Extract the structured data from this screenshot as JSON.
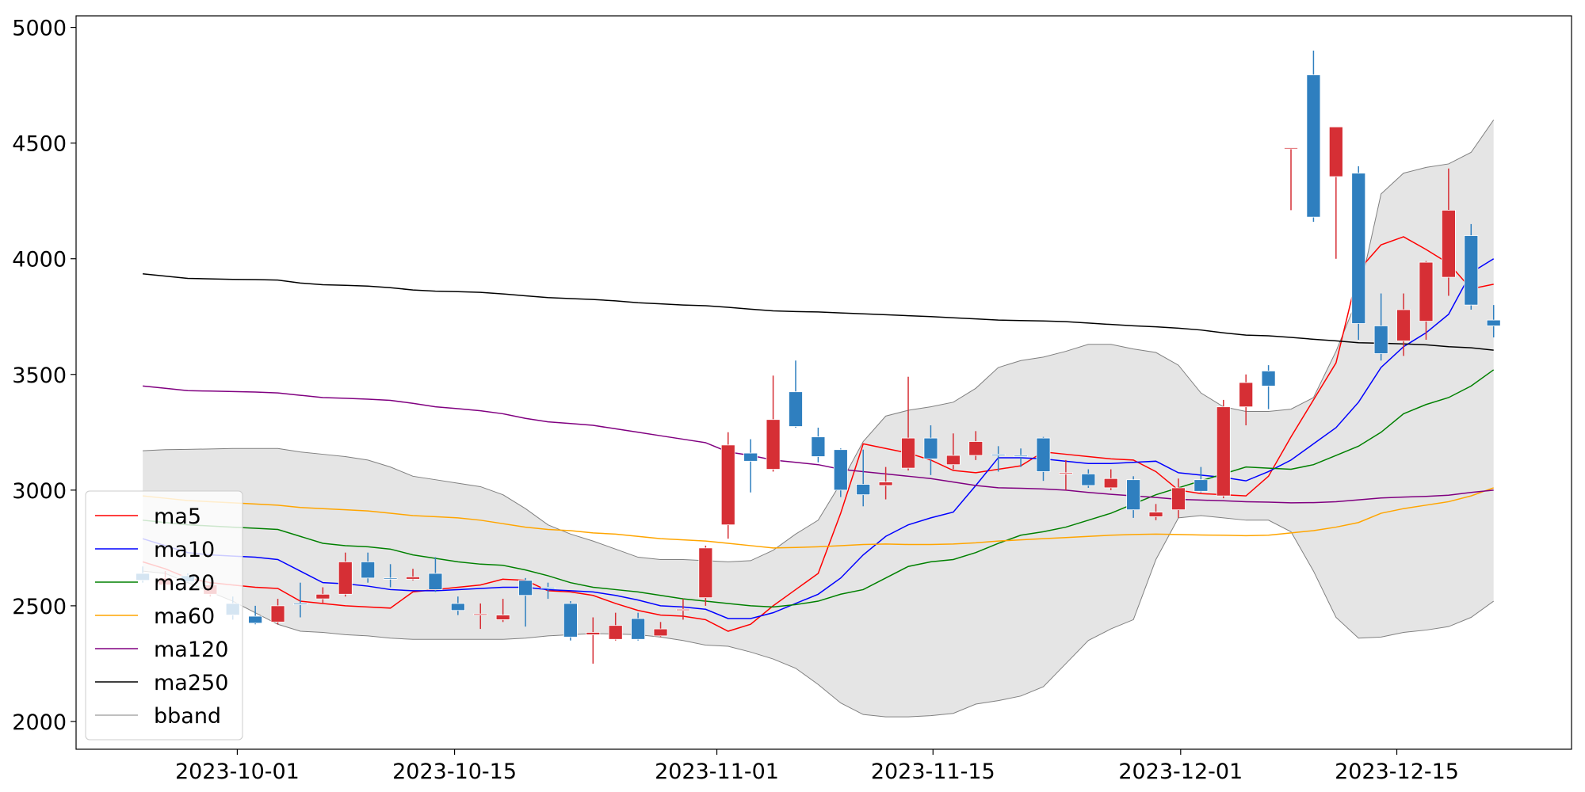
{
  "chart_data": {
    "type": "candlestick",
    "xlim": [
      -2.96,
      63.46
    ],
    "xticks": [
      {
        "value": 4.2,
        "label": "2023-10-01"
      },
      {
        "value": 13.85,
        "label": "2023-10-15"
      },
      {
        "value": 25.5,
        "label": "2023-11-01"
      },
      {
        "value": 35.1,
        "label": "2023-11-15"
      },
      {
        "value": 46.1,
        "label": "2023-12-01"
      },
      {
        "value": 55.7,
        "label": "2023-12-15"
      }
    ],
    "ylim": [
      1880,
      5050
    ],
    "yticks": [
      2000,
      2500,
      3000,
      3500,
      4000,
      4500,
      5000
    ],
    "up_color": "#d62f35",
    "down_color": "#2f7fbf",
    "legend": "lower left",
    "open": [
      2640,
      2590,
      2630,
      2550,
      2510,
      2455,
      2430,
      2510,
      2530,
      2550,
      2690,
      2620,
      2615,
      2640,
      2510,
      2460,
      2440,
      2610,
      2580,
      2510,
      2375,
      2355,
      2445,
      2370,
      2480,
      2535,
      2850,
      3160,
      3090,
      3425,
      3230,
      3175,
      3025,
      3020,
      3095,
      3225,
      3110,
      3150,
      3155,
      3150,
      3225,
      3075,
      3070,
      3010,
      3045,
      2885,
      2915,
      3045,
      2975,
      3360,
      3515,
      4475,
      4795,
      4355,
      4370,
      3710,
      3645,
      3730,
      3920,
      4100,
      3735
    ],
    "high": [
      2670,
      2650,
      2640,
      2600,
      2540,
      2500,
      2530,
      2600,
      2580,
      2730,
      2730,
      2680,
      2660,
      2710,
      2540,
      2510,
      2530,
      2620,
      2600,
      2520,
      2450,
      2470,
      2470,
      2430,
      2530,
      2760,
      3250,
      3220,
      3495,
      3560,
      3270,
      3180,
      3175,
      3100,
      3490,
      3280,
      3245,
      3255,
      3190,
      3180,
      3230,
      3130,
      3090,
      3090,
      3060,
      2940,
      3050,
      3100,
      3390,
      3500,
      3540,
      4480,
      4900,
      4570,
      4400,
      3850,
      3850,
      3990,
      4390,
      4150,
      3800
    ],
    "low": [
      2600,
      2570,
      2600,
      2540,
      2440,
      2420,
      2420,
      2450,
      2510,
      2540,
      2600,
      2580,
      2610,
      2560,
      2460,
      2400,
      2430,
      2410,
      2530,
      2350,
      2250,
      2350,
      2350,
      2365,
      2440,
      2500,
      2790,
      2990,
      3080,
      3270,
      3120,
      2970,
      2930,
      2960,
      3085,
      3065,
      3090,
      3130,
      3080,
      3100,
      3040,
      3000,
      3010,
      3000,
      2880,
      2870,
      2880,
      2990,
      2965,
      3280,
      3350,
      4210,
      4160,
      4000,
      3650,
      3560,
      3580,
      3650,
      3840,
      3780,
      3660
    ],
    "close": [
      2610,
      2620,
      2605,
      2590,
      2460,
      2425,
      2500,
      2505,
      2550,
      2690,
      2620,
      2615,
      2625,
      2570,
      2480,
      2465,
      2460,
      2545,
      2575,
      2365,
      2385,
      2415,
      2355,
      2400,
      2485,
      2750,
      3195,
      3125,
      3305,
      3275,
      3145,
      3000,
      2980,
      3035,
      3225,
      3135,
      3150,
      3210,
      3150,
      3145,
      3080,
      3075,
      3020,
      3050,
      2915,
      2905,
      3010,
      2995,
      3360,
      3465,
      3450,
      4480,
      4180,
      4570,
      3720,
      3590,
      3780,
      3985,
      4210,
      3800,
      3710
    ],
    "lines": [
      {
        "name": "ma5",
        "color": "#ff0000",
        "values": [
          2690,
          2660,
          2620,
          2600,
          2590,
          2580,
          2575,
          2520,
          2510,
          2500,
          2495,
          2490,
          2560,
          2570,
          2580,
          2590,
          2615,
          2610,
          2565,
          2560,
          2545,
          2510,
          2480,
          2460,
          2455,
          2440,
          2390,
          2420,
          2500,
          2570,
          2640,
          2900,
          3200,
          3180,
          3160,
          3130,
          3085,
          3075,
          3090,
          3105,
          3165,
          3155,
          3145,
          3135,
          3130,
          3080,
          3000,
          2985,
          2980,
          2975,
          3060,
          3230,
          3390,
          3550,
          3950,
          4060,
          4095,
          4040,
          3980,
          3870,
          3890
        ]
      },
      {
        "name": "ma10",
        "color": "#0000ff",
        "values": [
          2790,
          2760,
          2730,
          2720,
          2715,
          2710,
          2700,
          2650,
          2600,
          2595,
          2585,
          2570,
          2565,
          2565,
          2570,
          2575,
          2580,
          2580,
          2570,
          2565,
          2560,
          2545,
          2525,
          2500,
          2495,
          2485,
          2445,
          2445,
          2470,
          2510,
          2550,
          2620,
          2720,
          2800,
          2850,
          2880,
          2905,
          3020,
          3140,
          3140,
          3135,
          3125,
          3115,
          3115,
          3120,
          3125,
          3075,
          3065,
          3055,
          3040,
          3080,
          3130,
          3200,
          3270,
          3380,
          3530,
          3620,
          3680,
          3760,
          3940,
          4000
        ]
      },
      {
        "name": "ma20",
        "color": "#008000",
        "values": [
          2870,
          2860,
          2850,
          2845,
          2840,
          2835,
          2830,
          2800,
          2770,
          2760,
          2755,
          2745,
          2720,
          2705,
          2690,
          2680,
          2675,
          2655,
          2630,
          2600,
          2580,
          2570,
          2560,
          2545,
          2530,
          2520,
          2510,
          2500,
          2495,
          2505,
          2520,
          2550,
          2570,
          2620,
          2670,
          2690,
          2700,
          2730,
          2770,
          2805,
          2820,
          2840,
          2870,
          2900,
          2940,
          2980,
          3010,
          3040,
          3070,
          3100,
          3095,
          3090,
          3110,
          3150,
          3190,
          3250,
          3330,
          3370,
          3400,
          3450,
          3520
        ]
      },
      {
        "name": "ma60",
        "color": "#ffa500",
        "values": [
          2975,
          2965,
          2955,
          2950,
          2945,
          2940,
          2935,
          2925,
          2920,
          2915,
          2910,
          2900,
          2890,
          2885,
          2880,
          2870,
          2855,
          2840,
          2830,
          2825,
          2815,
          2810,
          2800,
          2790,
          2785,
          2780,
          2770,
          2760,
          2750,
          2752,
          2755,
          2760,
          2765,
          2767,
          2765,
          2765,
          2767,
          2772,
          2780,
          2785,
          2790,
          2795,
          2800,
          2805,
          2808,
          2810,
          2808,
          2806,
          2805,
          2803,
          2805,
          2815,
          2825,
          2840,
          2860,
          2900,
          2920,
          2935,
          2950,
          2975,
          3010
        ]
      },
      {
        "name": "ma120",
        "color": "#800080",
        "values": [
          3450,
          3440,
          3430,
          3428,
          3426,
          3424,
          3420,
          3410,
          3400,
          3397,
          3393,
          3388,
          3375,
          3360,
          3352,
          3343,
          3330,
          3310,
          3295,
          3288,
          3280,
          3265,
          3250,
          3235,
          3220,
          3205,
          3165,
          3150,
          3130,
          3120,
          3110,
          3090,
          3080,
          3070,
          3060,
          3050,
          3035,
          3020,
          3010,
          3008,
          3005,
          3000,
          2990,
          2982,
          2975,
          2968,
          2960,
          2957,
          2954,
          2950,
          2948,
          2945,
          2946,
          2950,
          2958,
          2966,
          2970,
          2973,
          2978,
          2990,
          3000
        ]
      },
      {
        "name": "ma250",
        "color": "#000000",
        "values": [
          3935,
          3925,
          3915,
          3913,
          3911,
          3910,
          3908,
          3895,
          3888,
          3885,
          3882,
          3875,
          3865,
          3860,
          3858,
          3855,
          3848,
          3840,
          3832,
          3828,
          3824,
          3818,
          3810,
          3805,
          3800,
          3797,
          3790,
          3782,
          3775,
          3772,
          3770,
          3766,
          3762,
          3758,
          3754,
          3750,
          3745,
          3740,
          3735,
          3733,
          3731,
          3728,
          3722,
          3716,
          3710,
          3706,
          3700,
          3692,
          3680,
          3670,
          3667,
          3660,
          3652,
          3645,
          3637,
          3635,
          3632,
          3628,
          3620,
          3615,
          3605
        ]
      }
    ],
    "bband": {
      "name": "bband",
      "color": "#808080",
      "fill": "#e5e5e5",
      "upper": [
        3170,
        3175,
        3176,
        3178,
        3180,
        3180,
        3180,
        3165,
        3155,
        3145,
        3130,
        3100,
        3060,
        3045,
        3030,
        3015,
        2980,
        2920,
        2850,
        2810,
        2780,
        2745,
        2710,
        2700,
        2700,
        2695,
        2690,
        2695,
        2740,
        2810,
        2870,
        3030,
        3210,
        3320,
        3345,
        3360,
        3380,
        3440,
        3530,
        3560,
        3575,
        3600,
        3630,
        3630,
        3610,
        3595,
        3540,
        3420,
        3360,
        3340,
        3340,
        3350,
        3400,
        3600,
        3840,
        4280,
        4370,
        4395,
        4410,
        4460,
        4600
      ],
      "lower": [
        2650,
        2640,
        2600,
        2560,
        2520,
        2470,
        2420,
        2390,
        2385,
        2375,
        2370,
        2360,
        2355,
        2355,
        2355,
        2355,
        2355,
        2360,
        2370,
        2375,
        2380,
        2378,
        2375,
        2365,
        2350,
        2330,
        2325,
        2300,
        2270,
        2230,
        2160,
        2080,
        2030,
        2020,
        2020,
        2025,
        2035,
        2075,
        2090,
        2110,
        2150,
        2250,
        2350,
        2400,
        2440,
        2700,
        2880,
        2890,
        2880,
        2870,
        2870,
        2820,
        2650,
        2450,
        2360,
        2365,
        2385,
        2395,
        2410,
        2450,
        2520
      ]
    }
  }
}
